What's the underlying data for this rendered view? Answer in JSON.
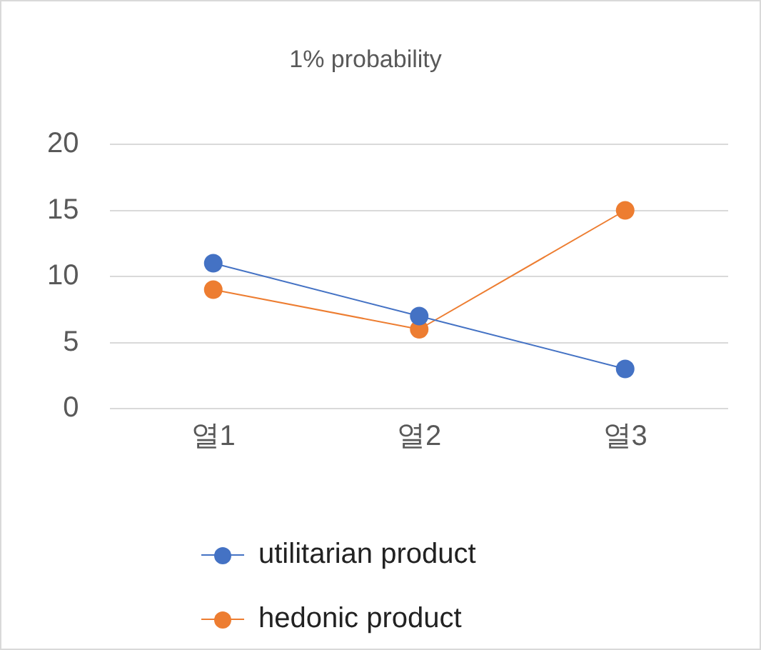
{
  "chart_data": {
    "type": "line",
    "title": "1% probability",
    "categories": [
      "열1",
      "열2",
      "열3"
    ],
    "series": [
      {
        "name": "utilitarian product",
        "color": "#4472c4",
        "values": [
          11,
          7,
          3
        ]
      },
      {
        "name": "hedonic product",
        "color": "#ed7d31",
        "values": [
          9,
          6,
          15
        ]
      }
    ],
    "ylim": [
      0,
      20
    ],
    "yticks": [
      0,
      5,
      10,
      15,
      20
    ],
    "grid": "y",
    "legend": "bottom",
    "marker": "circle",
    "line_style": "solid"
  }
}
